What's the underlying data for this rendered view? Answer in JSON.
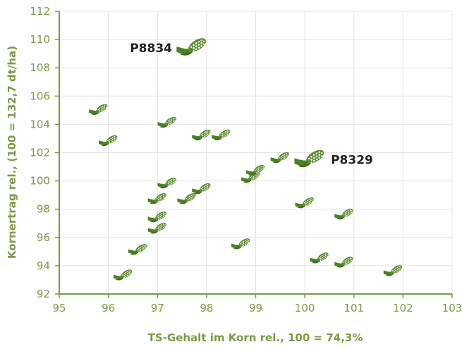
{
  "chart_data": {
    "type": "scatter",
    "title": "",
    "xlabel": "TS-Gehalt im Korn rel., 100 = 74,3%",
    "ylabel": "Kornertrag rel., (100 = 132,7 dt/ha)",
    "xlim": [
      95,
      103
    ],
    "ylim": [
      92,
      112
    ],
    "xticks": [
      "95",
      "96",
      "97",
      "98",
      "99",
      "100",
      "101",
      "102",
      "103"
    ],
    "yticks": [
      "92",
      "94",
      "96",
      "98",
      "100",
      "102",
      "104",
      "106",
      "108",
      "110",
      "112"
    ],
    "grid": true,
    "marker_icon": "corn-cob-icon",
    "colors": {
      "axis": "#7a9a45",
      "grid": "#e3e3e3",
      "marker": "#5a8a2e",
      "marker_highlight": "#6a9a34"
    },
    "points": [
      {
        "x": 95.8,
        "y": 105.0
      },
      {
        "x": 96.0,
        "y": 102.8
      },
      {
        "x": 96.3,
        "y": 93.3
      },
      {
        "x": 96.6,
        "y": 95.1
      },
      {
        "x": 97.0,
        "y": 98.7
      },
      {
        "x": 97.0,
        "y": 97.4
      },
      {
        "x": 97.0,
        "y": 96.6
      },
      {
        "x": 97.2,
        "y": 104.1
      },
      {
        "x": 97.2,
        "y": 99.8
      },
      {
        "x": 97.6,
        "y": 98.7
      },
      {
        "x": 97.7,
        "y": 109.4,
        "label": "P8834",
        "highlight": true
      },
      {
        "x": 97.9,
        "y": 103.2
      },
      {
        "x": 97.9,
        "y": 99.4
      },
      {
        "x": 98.3,
        "y": 103.2
      },
      {
        "x": 98.7,
        "y": 95.5
      },
      {
        "x": 98.9,
        "y": 100.2
      },
      {
        "x": 99.0,
        "y": 100.7
      },
      {
        "x": 99.5,
        "y": 101.6
      },
      {
        "x": 100.0,
        "y": 98.4
      },
      {
        "x": 100.1,
        "y": 101.5,
        "label": "P8329",
        "highlight": true
      },
      {
        "x": 100.3,
        "y": 94.5
      },
      {
        "x": 100.8,
        "y": 94.2
      },
      {
        "x": 100.8,
        "y": 97.6
      },
      {
        "x": 101.8,
        "y": 93.6
      }
    ]
  }
}
